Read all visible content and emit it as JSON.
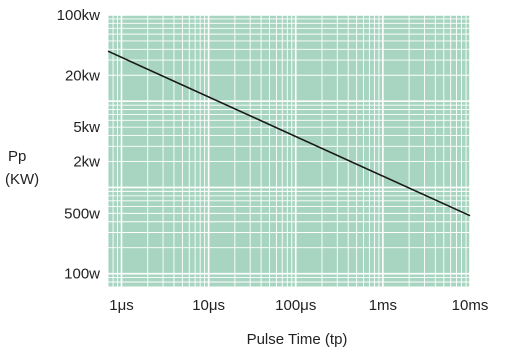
{
  "chart_data": {
    "type": "line",
    "title": "",
    "xlabel": "Pulse Time (tp)",
    "ylabel_lines": [
      "Pp",
      "(KW)"
    ],
    "x_scale": "log",
    "y_scale": "log",
    "x_unit": "s",
    "y_unit": "W",
    "xlim": [
      7e-07,
      0.01
    ],
    "ylim": [
      70,
      100000
    ],
    "x_ticks": [
      {
        "value": 1e-06,
        "label": "1μs"
      },
      {
        "value": 1e-05,
        "label": "10μs"
      },
      {
        "value": 0.0001,
        "label": "100μs"
      },
      {
        "value": 0.001,
        "label": "1ms"
      },
      {
        "value": 0.01,
        "label": "10ms"
      }
    ],
    "y_ticks": [
      {
        "value": 100000,
        "label": "100kw"
      },
      {
        "value": 20000,
        "label": "20kw"
      },
      {
        "value": 5000,
        "label": "5kw"
      },
      {
        "value": 2000,
        "label": "2kw"
      },
      {
        "value": 500,
        "label": "500w"
      },
      {
        "value": 100,
        "label": "100w"
      }
    ],
    "grid": true,
    "colors": {
      "plot_background": "#a8d5c1",
      "grid_line": "#ffffff",
      "series_line": "#1a1a1a"
    },
    "series": [
      {
        "x": [
          7e-07,
          0.01
        ],
        "y": [
          38000,
          470
        ]
      }
    ]
  }
}
